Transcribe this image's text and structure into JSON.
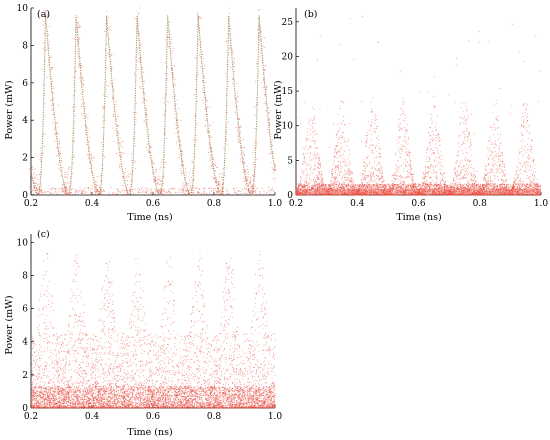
{
  "chart_data": [
    {
      "type": "scatter",
      "panel_label": "(a)",
      "xlabel": "Time (ns)",
      "ylabel": "Power (mW)",
      "xlim": [
        0.2,
        1.0
      ],
      "ylim": [
        0,
        10
      ],
      "x_ticks": [
        "0.2",
        "0.4",
        "0.6",
        "0.8",
        "1.0"
      ],
      "y_ticks": [
        "0",
        "2",
        "4",
        "6",
        "8",
        "10"
      ],
      "grid": false,
      "pattern": "periodic pulses, sharp decay",
      "pulse_period_ns": 0.1,
      "pulse_peaks_x": [
        0.248,
        0.348,
        0.448,
        0.548,
        0.648,
        0.748,
        0.848,
        0.948
      ],
      "pulse_peak_value": 9.6,
      "colors": {
        "points": "#e8473c",
        "curve": "#8b7a3a"
      }
    },
    {
      "type": "scatter",
      "panel_label": "(b)",
      "xlabel": "Time (ns)",
      "ylabel": "Power (mW)",
      "xlim": [
        0.2,
        1.0
      ],
      "ylim": [
        0,
        27
      ],
      "x_ticks": [
        "0.2",
        "0.4",
        "0.6",
        "0.8",
        "1.0"
      ],
      "y_ticks": [
        "0",
        "5",
        "10",
        "15",
        "20",
        "25"
      ],
      "grid": false,
      "pattern": "noisy periodic bursts",
      "pulse_peaks_x": [
        0.25,
        0.35,
        0.45,
        0.55,
        0.65,
        0.75,
        0.85,
        0.95
      ],
      "pulse_peak_value": 14,
      "outlier_max": 26,
      "colors": {
        "points": "#e8473c"
      }
    },
    {
      "type": "scatter",
      "panel_label": "(c)",
      "xlabel": "Time (ns)",
      "ylabel": "Power (mW)",
      "xlim": [
        0.2,
        1.0
      ],
      "ylim": [
        0,
        10.5
      ],
      "x_ticks": [
        "0.2",
        "0.4",
        "0.6",
        "0.8",
        "1.0"
      ],
      "y_ticks": [
        "0",
        "2",
        "4",
        "6",
        "8",
        "10"
      ],
      "grid": false,
      "pattern": "dense noise, weak periodic modulation",
      "pulse_peaks_x": [
        0.25,
        0.35,
        0.45,
        0.55,
        0.65,
        0.75,
        0.85,
        0.95
      ],
      "colors": {
        "points": "#e8473c"
      }
    }
  ]
}
